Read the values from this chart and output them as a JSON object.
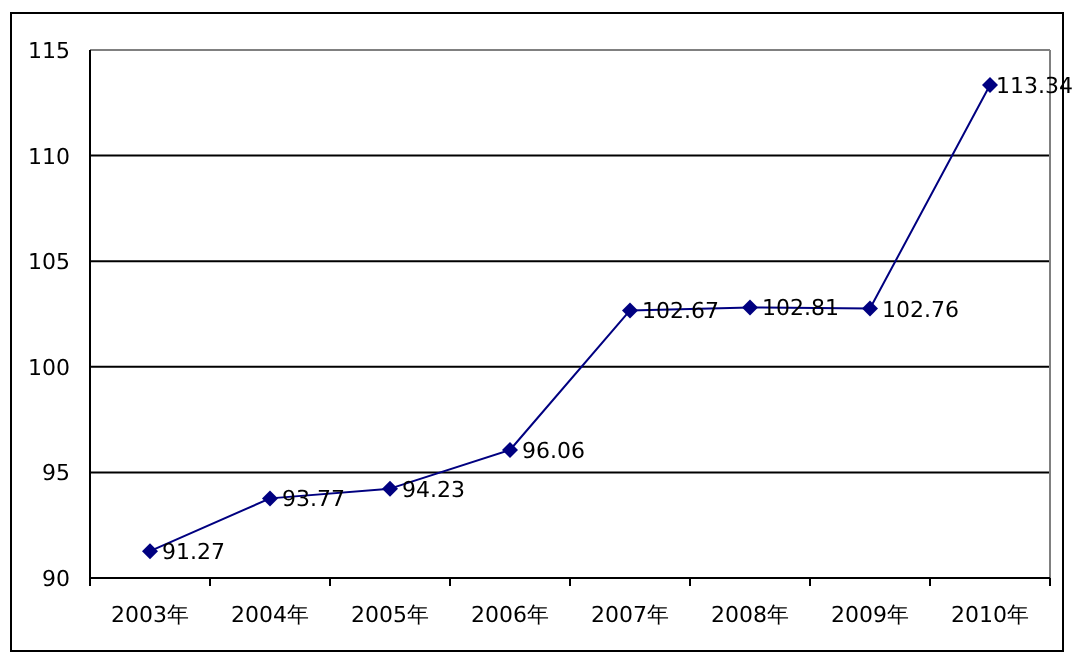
{
  "chart_data": {
    "type": "line",
    "categories": [
      "2003年",
      "2004年",
      "2005年",
      "2006年",
      "2007年",
      "2008年",
      "2009年",
      "2010年"
    ],
    "values": [
      91.27,
      93.77,
      94.23,
      96.06,
      102.67,
      102.81,
      102.76,
      113.34
    ],
    "color": "#000080",
    "ylim": [
      90,
      115
    ],
    "yticks": [
      90,
      95,
      100,
      105,
      110,
      115
    ],
    "grid": "y",
    "marker": "diamond",
    "data_labels": true
  }
}
